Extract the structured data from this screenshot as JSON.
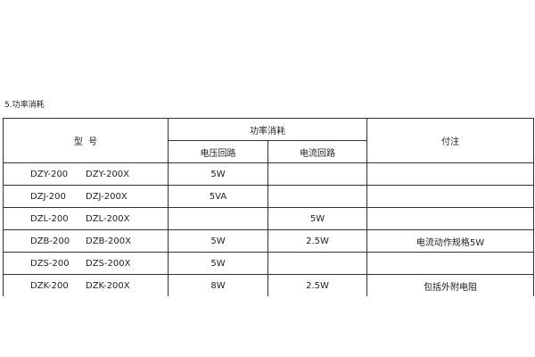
{
  "section_title": "5.功率消耗",
  "headers": {
    "model": "型  号",
    "power": "功率消耗",
    "voltage_circuit": "电压回路",
    "current_circuit": "电流回路",
    "note": "付注"
  },
  "rows": [
    {
      "model_a": "DZY-200",
      "model_b": "DZY-200X",
      "voltage": "5W",
      "current": "",
      "note": ""
    },
    {
      "model_a": "DZJ-200",
      "model_b": "DZJ-200X",
      "voltage": "5VA",
      "current": "",
      "note": ""
    },
    {
      "model_a": "DZL-200",
      "model_b": "DZL-200X",
      "voltage": "",
      "current": "5W",
      "note": ""
    },
    {
      "model_a": "DZB-200",
      "model_b": "DZB-200X",
      "voltage": "5W",
      "current": "2.5W",
      "note": "电流动作规格5W"
    },
    {
      "model_a": "DZS-200",
      "model_b": "DZS-200X",
      "voltage": "5W",
      "current": "",
      "note": ""
    },
    {
      "model_a": "DZK-200",
      "model_b": "DZK-200X",
      "voltage": "8W",
      "current": "2.5W",
      "note": "包括外附电阻"
    }
  ]
}
